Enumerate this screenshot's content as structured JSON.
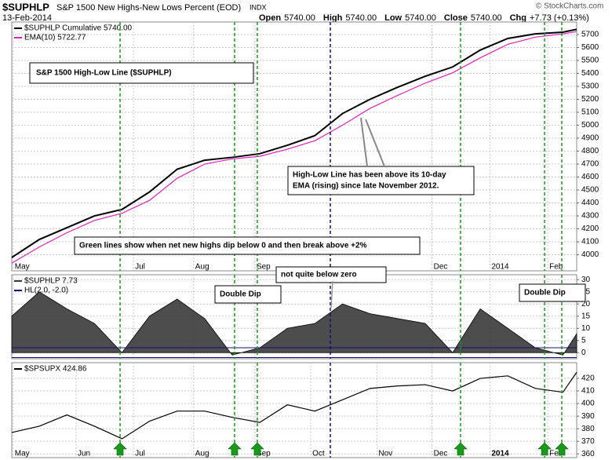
{
  "header": {
    "symbol": "$SUPHLP",
    "name": "S&P 1500 New Highs-New Lows Percent (EOD)",
    "exchange": "INDX",
    "date": "13-Feb-2014",
    "quote": [
      {
        "label": "Open",
        "value": "5740.00"
      },
      {
        "label": "High",
        "value": "5740.00"
      },
      {
        "label": "Low",
        "value": "5740.00"
      },
      {
        "label": "Close",
        "value": "5740.00"
      },
      {
        "label": "Chg",
        "value": "+7.73 (+0.13%)"
      }
    ],
    "credit": "© StockCharts.com"
  },
  "vlines": [
    {
      "x": 7.86,
      "color": "#1a9a1a"
    },
    {
      "x": 16.17,
      "color": "#1a9a1a"
    },
    {
      "x": 17.82,
      "color": "#1a9a1a"
    },
    {
      "x": 23.12,
      "color": "#10107a"
    },
    {
      "x": 32.57,
      "color": "#1a9a1a"
    },
    {
      "x": 38.67,
      "color": "#1a9a1a"
    },
    {
      "x": 39.92,
      "color": "#1a9a1a"
    }
  ],
  "chart_data": [
    {
      "type": "line",
      "title": "S&P 1500 High-Low Line ($SUPHLP)",
      "notes": [
        [
          "High-Low Line has been above its 10-day",
          "EMA (rising) since late November 2012."
        ],
        [
          "Green lines show when net new highs dip below 0 and then break above +2%"
        ]
      ],
      "x": [
        0,
        2,
        4,
        6,
        8,
        10,
        12,
        14,
        16,
        18,
        20,
        22,
        24,
        26,
        28,
        30,
        32,
        34,
        36,
        38,
        40,
        41
      ],
      "series": [
        {
          "name": "$SUPHLP Cumulative 5740.00",
          "color": "#000000",
          "values": [
            3979,
            4118,
            4209,
            4300,
            4350,
            4485,
            4660,
            4730,
            4752,
            4780,
            4845,
            4920,
            5090,
            5200,
            5293,
            5378,
            5450,
            5580,
            5670,
            5705,
            5718,
            5740
          ]
        },
        {
          "name": "EMA(10) 5722.77",
          "color": "#e020c0",
          "values": [
            3935,
            4060,
            4170,
            4265,
            4320,
            4420,
            4590,
            4700,
            4740,
            4760,
            4815,
            4880,
            5000,
            5130,
            5230,
            5325,
            5405,
            5520,
            5625,
            5680,
            5705,
            5723
          ]
        }
      ],
      "xlim": [
        0,
        41
      ],
      "ylim": [
        3876,
        5797
      ],
      "yticks": [
        4000,
        4100,
        4200,
        4300,
        4400,
        4500,
        4600,
        4700,
        4800,
        4900,
        5000,
        5100,
        5200,
        5300,
        5400,
        5500,
        5600,
        5700
      ],
      "xticks": [
        {
          "value": 0.1,
          "label": "May"
        },
        {
          "value": 8.83,
          "label": "Jul"
        },
        {
          "value": 13.2,
          "label": "Aug"
        },
        {
          "value": 17.65,
          "label": "Sep"
        },
        {
          "value": 30.5,
          "label": "Dec"
        },
        {
          "value": 34.7,
          "label": "2014"
        },
        {
          "value": 38.9,
          "label": "Feb"
        }
      ],
      "grid": true
    },
    {
      "type": "area",
      "notes": [
        [
          "Double Dip"
        ],
        [
          "Double Dip"
        ],
        [
          "not quite below zero"
        ]
      ],
      "x": [
        0,
        2,
        4,
        6,
        8,
        10,
        12,
        14,
        16,
        18,
        20,
        22,
        24,
        26,
        28,
        30,
        32,
        34,
        36,
        38,
        40,
        41
      ],
      "series": [
        {
          "name": "$SUPHLP 7.73",
          "color": "#3a3a3a",
          "values": [
            15,
            25,
            18,
            12,
            0,
            15,
            22,
            14,
            -1,
            2,
            10,
            12,
            20,
            16,
            14,
            12,
            0,
            18,
            10,
            2,
            -1,
            7.73
          ]
        }
      ],
      "levels": {
        "name": "HL(2.0, -2.0)",
        "color": "#10107a",
        "values": [
          2,
          -2
        ]
      },
      "xlim": [
        0,
        41
      ],
      "ylim": [
        -2.5,
        32
      ],
      "yticks": [
        0,
        5,
        10,
        15,
        20,
        25,
        30
      ],
      "grid": true
    },
    {
      "type": "line",
      "x": [
        0,
        2,
        4,
        6,
        8,
        10,
        12,
        14,
        16,
        18,
        20,
        22,
        24,
        26,
        28,
        30,
        32,
        34,
        36,
        38,
        40,
        41
      ],
      "series": [
        {
          "name": "$SPSUPX 424.86",
          "color": "#000000",
          "values": [
            377,
            382,
            391,
            382,
            372,
            386,
            394,
            394,
            389,
            385,
            399,
            394,
            403,
            412,
            414,
            415,
            410,
            420,
            422,
            412,
            409,
            424.86
          ]
        }
      ],
      "signals": [
        7.86,
        16.17,
        17.82,
        32.57,
        38.67,
        39.92
      ],
      "xlim": [
        0,
        41
      ],
      "ylim": [
        357,
        432.5
      ],
      "yticks": [
        360,
        370,
        380,
        390,
        400,
        410,
        420
      ],
      "xticks": [
        {
          "value": 0.1,
          "label": "May"
        },
        {
          "value": 4.67,
          "label": "Jun"
        },
        {
          "value": 8.83,
          "label": "Jul"
        },
        {
          "value": 13.2,
          "label": "Aug"
        },
        {
          "value": 17.65,
          "label": "Sep"
        },
        {
          "value": 21.7,
          "label": "Oct"
        },
        {
          "value": 26.5,
          "label": "Nov"
        },
        {
          "value": 30.5,
          "label": "Dec"
        },
        {
          "value": 34.7,
          "label": "2014"
        },
        {
          "value": 38.9,
          "label": "Feb"
        }
      ],
      "grid": true
    }
  ]
}
